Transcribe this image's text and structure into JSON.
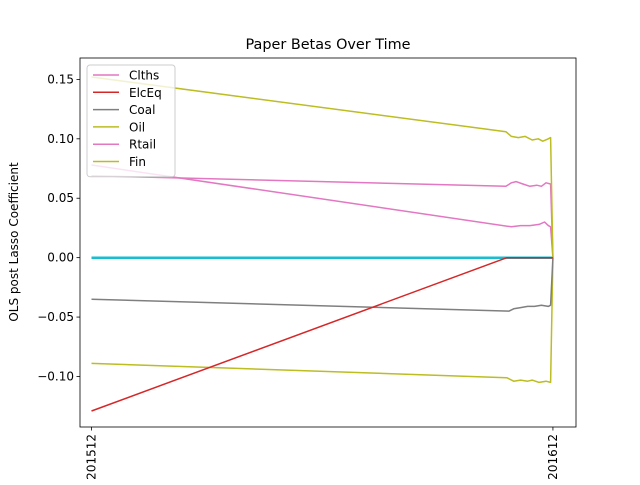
{
  "chart_data": {
    "type": "line",
    "title": "Paper Betas Over Time",
    "xlabel": "",
    "ylabel": "OLS post Lasso Coefficient",
    "x_ticks": [
      "201512",
      "201612"
    ],
    "y_ticks": [
      0.15,
      0.1,
      0.05,
      0.0,
      -0.05,
      -0.1
    ],
    "y_tick_labels": [
      "0.15",
      "0.10",
      "0.05",
      "0.00",
      "−0.05",
      "−0.10"
    ],
    "ylim": [
      -0.1425,
      0.168
    ],
    "xlim": [
      -0.025,
      1.05
    ],
    "grid": false,
    "legend_position": "top-left",
    "legend": [
      {
        "name": "Clths",
        "color": "#e377c2"
      },
      {
        "name": "ElcEq",
        "color": "#d62728"
      },
      {
        "name": "Coal",
        "color": "#7f7f7f"
      },
      {
        "name": "Oil",
        "color": "#bcbd22"
      },
      {
        "name": "Rtail",
        "color": "#e377c2"
      },
      {
        "name": "Fin",
        "color": "#bcbd22"
      }
    ],
    "series": [
      {
        "color": "#17becf",
        "width": 2.5,
        "points": [
          [
            0,
            0.0
          ],
          [
            1,
            0.0
          ]
        ]
      },
      {
        "color": "#e377c2",
        "width": 1.5,
        "points": [
          [
            0,
            0.069
          ],
          [
            0.898,
            0.06
          ],
          [
            0.91,
            0.063
          ],
          [
            0.92,
            0.064
          ],
          [
            0.935,
            0.062
          ],
          [
            0.95,
            0.06
          ],
          [
            0.965,
            0.061
          ],
          [
            0.975,
            0.06
          ],
          [
            0.985,
            0.063
          ],
          [
            0.995,
            0.062
          ],
          [
            1,
            0.0
          ]
        ]
      },
      {
        "color": "#e377c2",
        "width": 1.5,
        "points": [
          [
            0,
            0.078
          ],
          [
            0.91,
            0.026
          ],
          [
            0.93,
            0.027
          ],
          [
            0.95,
            0.027
          ],
          [
            0.97,
            0.028
          ],
          [
            0.982,
            0.03
          ],
          [
            0.99,
            0.027
          ],
          [
            0.995,
            0.026
          ],
          [
            1,
            0.0
          ]
        ]
      },
      {
        "color": "#bcbd22",
        "width": 1.5,
        "points": [
          [
            0,
            0.152
          ],
          [
            0.898,
            0.106
          ],
          [
            0.91,
            0.102
          ],
          [
            0.925,
            0.101
          ],
          [
            0.94,
            0.102
          ],
          [
            0.955,
            0.099
          ],
          [
            0.968,
            0.1
          ],
          [
            0.978,
            0.098
          ],
          [
            0.99,
            0.1
          ],
          [
            0.995,
            0.101
          ],
          [
            1,
            0.0
          ]
        ]
      },
      {
        "color": "#bcbd22",
        "width": 1.5,
        "points": [
          [
            0,
            -0.089
          ],
          [
            0.9,
            -0.101
          ],
          [
            0.915,
            -0.104
          ],
          [
            0.93,
            -0.103
          ],
          [
            0.945,
            -0.104
          ],
          [
            0.955,
            -0.103
          ],
          [
            0.97,
            -0.105
          ],
          [
            0.985,
            -0.104
          ],
          [
            0.995,
            -0.105
          ],
          [
            1,
            0.0
          ]
        ]
      },
      {
        "color": "#7f7f7f",
        "width": 1.5,
        "points": [
          [
            0,
            -0.035
          ],
          [
            0.905,
            -0.045
          ],
          [
            0.915,
            -0.043
          ],
          [
            0.93,
            -0.042
          ],
          [
            0.945,
            -0.041
          ],
          [
            0.96,
            -0.041
          ],
          [
            0.975,
            -0.04
          ],
          [
            0.99,
            -0.041
          ],
          [
            0.995,
            -0.04
          ],
          [
            1,
            0.0
          ]
        ]
      },
      {
        "color": "#d62728",
        "width": 1.5,
        "points": [
          [
            0,
            -0.129
          ],
          [
            0.9,
            0.0
          ],
          [
            1,
            0.0
          ]
        ]
      }
    ]
  }
}
